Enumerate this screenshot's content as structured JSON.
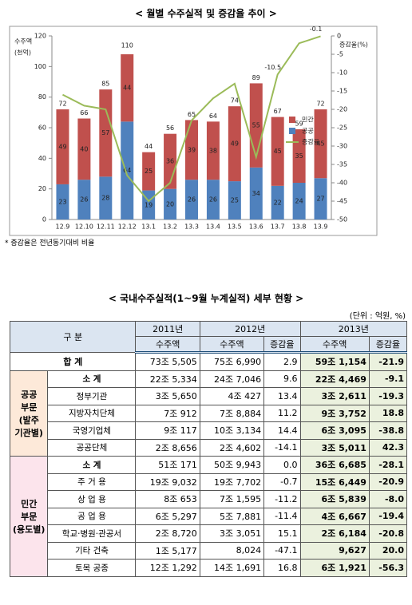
{
  "chart_data": {
    "type": "bar",
    "stacked": true,
    "title": "< 월별 수주실적 및 증감율 추이 >",
    "y_label_lines": [
      "수주액",
      "(천억)"
    ],
    "y2_label": "증감율(%)",
    "categories": [
      "12.9",
      "12.10",
      "12.11",
      "12.12",
      "13.1",
      "13.2",
      "13.3",
      "13.4",
      "13.5",
      "13.6",
      "13.7",
      "13.8",
      "13.9"
    ],
    "totals": [
      72,
      66,
      85,
      110,
      44,
      56,
      65,
      64,
      74,
      89,
      67,
      59,
      72
    ],
    "series": [
      {
        "name": "공공",
        "color": "#4f81bd",
        "values": [
          23,
          26,
          28,
          64,
          19,
          20,
          26,
          26,
          25,
          34,
          22,
          24,
          27
        ]
      },
      {
        "name": "민간",
        "color": "#c0504d",
        "values": [
          49,
          40,
          57,
          44,
          25,
          36,
          39,
          38,
          49,
          55,
          45,
          35,
          45
        ]
      },
      {
        "name": "증감율",
        "color": "#9bbb59",
        "axis": "y2",
        "type": "line",
        "values": [
          -16,
          -19,
          -20,
          -38,
          -45,
          -40,
          -23,
          -17,
          -13,
          -33,
          -10.5,
          -2,
          -0.1
        ],
        "value_labels": [
          null,
          null,
          null,
          null,
          null,
          null,
          null,
          null,
          null,
          null,
          "-10.5",
          null,
          "-0.1"
        ]
      }
    ],
    "ylim": [
      0,
      120
    ],
    "yticks": [
      0,
      20,
      40,
      60,
      80,
      100,
      120
    ],
    "y2lim": [
      -50,
      0
    ],
    "y2ticks": [
      0,
      -5,
      -10,
      -15,
      -20,
      -25,
      -30,
      -35,
      -40,
      -45,
      -50
    ],
    "legend": "right",
    "note": "* 증감율은 전년동기대비 비율"
  },
  "table": {
    "title": "< 국내수주실적(1~9월 누계실적) 세부 현황 >",
    "unit": "(단위 : 억원, %)",
    "header": {
      "group": "구 분",
      "years": [
        "2011년",
        "2012년",
        "2013년"
      ],
      "sub": [
        "수주액",
        "수주액",
        "증감율",
        "수주액",
        "증감율"
      ]
    },
    "total_row": {
      "label": "합 계",
      "cells": [
        "73조 5,505",
        "75조 6,990",
        "2.9",
        "59조 1,154",
        "-21.9"
      ]
    },
    "groups": [
      {
        "lines": [
          "공공",
          "부문",
          "(발주",
          "기관별)"
        ],
        "color": "#fde9d9",
        "rows": [
          {
            "label": "소 계",
            "cells": [
              "22조 5,334",
              "24조 7,046",
              "9.6",
              "22조 4,469",
              "-9.1"
            ]
          },
          {
            "label": "정부기관",
            "cells": [
              "3조 5,650",
              "4조 427",
              "13.4",
              "3조 2,611",
              "-19.3"
            ]
          },
          {
            "label": "지방자치단체",
            "cells": [
              "7조 912",
              "7조 8,884",
              "11.2",
              "9조 3,752",
              "18.8"
            ]
          },
          {
            "label": "국영기업체",
            "cells": [
              "9조 117",
              "10조 3,134",
              "14.4",
              "6조 3,095",
              "-38.8"
            ]
          },
          {
            "label": "공공단체",
            "cells": [
              "2조 8,656",
              "2조 4,602",
              "-14.1",
              "3조 5,011",
              "42.3"
            ]
          }
        ]
      },
      {
        "lines": [
          "민간",
          "부문",
          "(용도별)"
        ],
        "color": "#fce4ec",
        "rows": [
          {
            "label": "소 계",
            "cells": [
              "51조 171",
              "50조 9,943",
              "0.0",
              "36조 6,685",
              "-28.1"
            ]
          },
          {
            "label": "주 거 용",
            "cells": [
              "19조 9,032",
              "19조 7,702",
              "-0.7",
              "15조 6,449",
              "-20.9"
            ]
          },
          {
            "label": "상 업 용",
            "cells": [
              "8조 653",
              "7조 1,595",
              "-11.2",
              "6조 5,839",
              "-8.0"
            ]
          },
          {
            "label": "공 업 용",
            "cells": [
              "6조 5,297",
              "5조 7,881",
              "-11.4",
              "4조 6,667",
              "-19.4"
            ]
          },
          {
            "label": "학교·병원·관공서",
            "cells": [
              "2조 8,720",
              "3조 3,051",
              "15.1",
              "2조 6,184",
              "-20.8"
            ]
          },
          {
            "label": "기타 건축",
            "cells": [
              "1조 5,177",
              "8,024",
              "-47.1",
              "9,627",
              "20.0"
            ]
          },
          {
            "label": "토목 공종",
            "cells": [
              "12조 1,292",
              "14조 1,691",
              "16.8",
              "6조 1,921",
              "-56.3"
            ]
          }
        ]
      }
    ]
  }
}
